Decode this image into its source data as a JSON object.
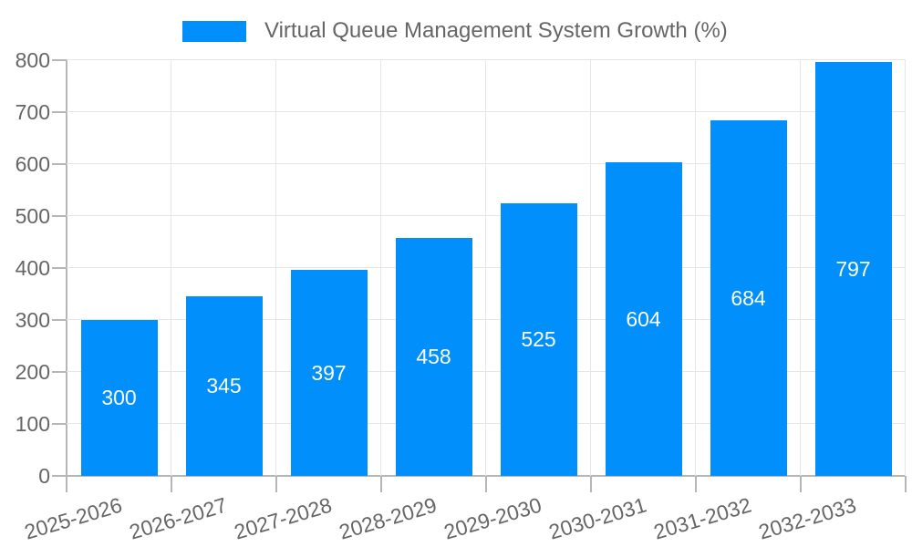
{
  "legend": {
    "label": "Virtual Queue Management System Growth (%)"
  },
  "colors": {
    "bar": "#008FFB",
    "grid": "#e6e6e6",
    "axis": "#b6b6b6",
    "axis_text": "#666666",
    "bar_label_text": "#ffffff",
    "background": "#ffffff"
  },
  "chart_data": {
    "type": "bar",
    "title": "Virtual Queue Management System Growth (%)",
    "categories": [
      "2025-2026",
      "2026-2027",
      "2027-2028",
      "2028-2029",
      "2029-2030",
      "2030-2031",
      "2031-2032",
      "2032-2033"
    ],
    "values": [
      300,
      345,
      397,
      458,
      525,
      604,
      684,
      797
    ],
    "xlabel": "",
    "ylabel": "",
    "ylim": [
      0,
      800
    ],
    "yticks": [
      0,
      100,
      200,
      300,
      400,
      500,
      600,
      700,
      800
    ],
    "grid": true,
    "legend_position": "top",
    "value_labels": "inside-center",
    "x_label_rotation_deg": -16.5
  }
}
